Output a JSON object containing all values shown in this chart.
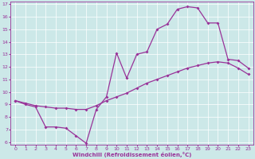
{
  "xlabel": "Windchill (Refroidissement éolien,°C)",
  "bg_color": "#cce8e8",
  "line_color": "#993399",
  "grid_color": "#ffffff",
  "xlim": [
    -0.5,
    23.5
  ],
  "ylim": [
    5.8,
    17.2
  ],
  "yticks": [
    6,
    7,
    8,
    9,
    10,
    11,
    12,
    13,
    14,
    15,
    16,
    17
  ],
  "xticks": [
    0,
    1,
    2,
    3,
    4,
    5,
    6,
    7,
    8,
    9,
    10,
    11,
    12,
    13,
    14,
    15,
    16,
    17,
    18,
    19,
    20,
    21,
    22,
    23
  ],
  "curve1_x": [
    0,
    1,
    2,
    3,
    4,
    5,
    6,
    7,
    8,
    9,
    10,
    11,
    12,
    13,
    14,
    15,
    16,
    17,
    18,
    19,
    20,
    21,
    22,
    23
  ],
  "curve1_y": [
    9.3,
    9.1,
    8.9,
    8.8,
    8.7,
    8.7,
    8.6,
    8.6,
    8.9,
    9.3,
    9.6,
    9.9,
    10.3,
    10.7,
    11.0,
    11.3,
    11.6,
    11.9,
    12.1,
    12.3,
    12.4,
    12.3,
    11.9,
    11.4
  ],
  "curve2_x": [
    0,
    1,
    2,
    3,
    4,
    5,
    6,
    7,
    8,
    9,
    10,
    11,
    12,
    13,
    14,
    15,
    16,
    17,
    18,
    19,
    20,
    21,
    22,
    23
  ],
  "curve2_y": [
    9.3,
    9.0,
    8.8,
    7.2,
    7.2,
    7.1,
    6.5,
    5.9,
    8.6,
    9.6,
    13.1,
    11.1,
    13.0,
    13.2,
    15.0,
    15.4,
    16.6,
    16.8,
    16.7,
    15.5,
    15.5,
    12.6,
    12.5,
    11.9
  ],
  "curve3_x": [
    0,
    23
  ],
  "curve3_y": [
    9.3,
    11.4
  ]
}
